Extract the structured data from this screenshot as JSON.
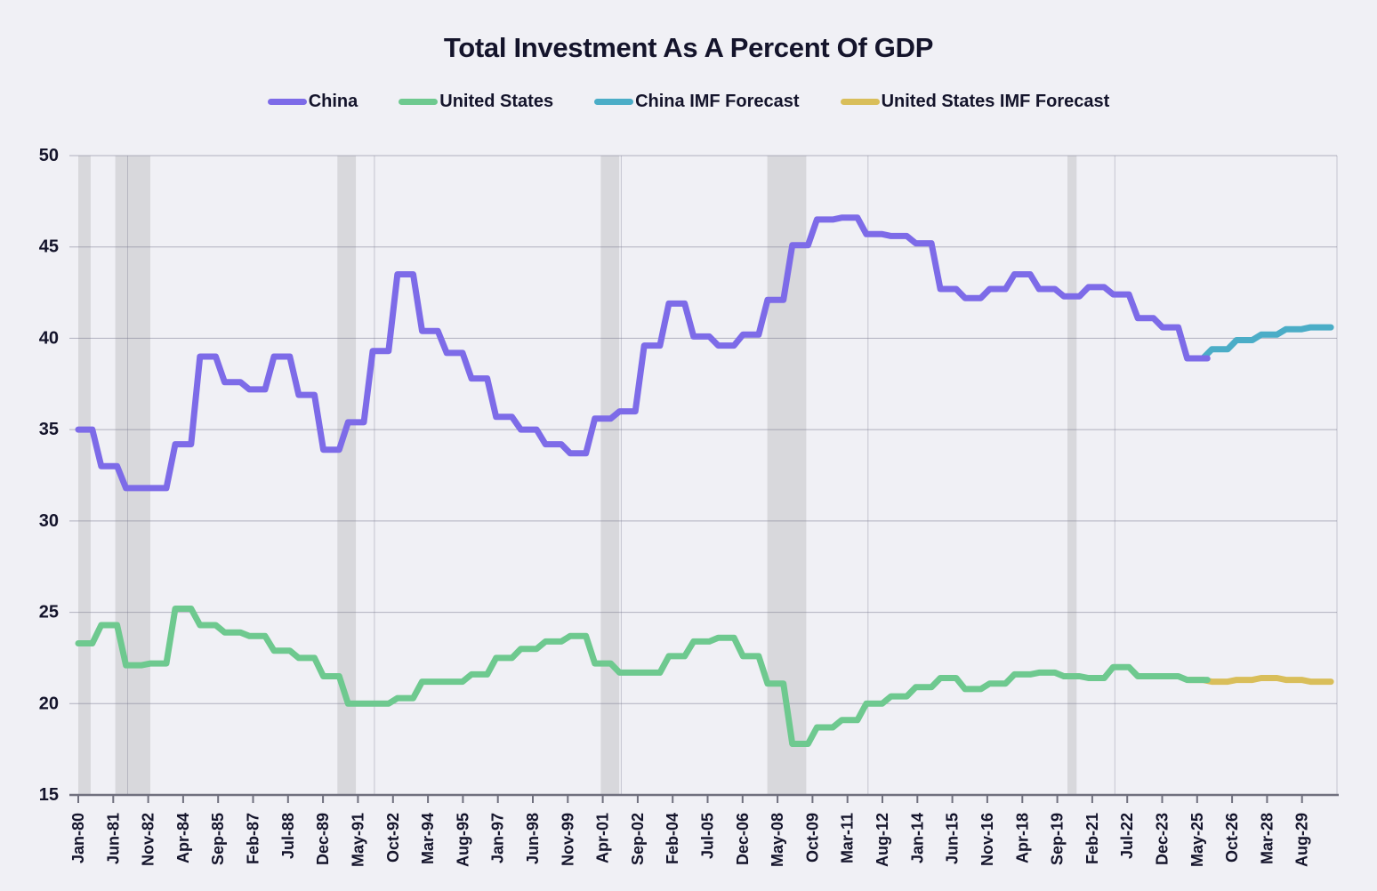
{
  "title": "Total Investment As A Percent Of GDP",
  "legend": {
    "items": [
      {
        "label": "China",
        "color": "#7D6BE8"
      },
      {
        "label": "United States",
        "color": "#6EC98F"
      },
      {
        "label": "China IMF Forecast",
        "color": "#4BADC7"
      },
      {
        "label": "United States IMF Forecast",
        "color": "#D9BE5A"
      }
    ]
  },
  "chart_data": {
    "type": "line",
    "step_interpolation": true,
    "title": "Total Investment As A Percent Of GDP",
    "xlabel": "",
    "ylabel": "",
    "ylim": [
      15,
      50
    ],
    "yticks": [
      15,
      20,
      25,
      30,
      35,
      40,
      45,
      50
    ],
    "x_range_years": [
      1980,
      2031
    ],
    "x_tick_spacing_months": 17,
    "x_tick_labels": [
      "Jan-80",
      "Jun-81",
      "Nov-82",
      "Apr-84",
      "Sep-85",
      "Feb-87",
      "Jul-88",
      "Dec-89",
      "May-91",
      "Oct-92",
      "Mar-94",
      "Aug-95",
      "Jan-97",
      "Jun-98",
      "Nov-99",
      "Apr-01",
      "Sep-02",
      "Feb-04",
      "Jul-05",
      "Dec-06",
      "May-08",
      "Oct-09",
      "Mar-11",
      "Aug-12",
      "Jan-14",
      "Jun-15",
      "Nov-16",
      "Apr-18",
      "Sep-19",
      "Feb-21",
      "Jul-22",
      "Dec-23",
      "May-25",
      "Oct-26",
      "Mar-28",
      "Aug-29"
    ],
    "grid": {
      "horizontal": true,
      "vertical_decades": [
        1982,
        1992,
        2002,
        2012,
        2022
      ],
      "right_border_year": 2031
    },
    "recession_bands": [
      [
        1980.0,
        1980.5
      ],
      [
        1981.5,
        1982.92
      ],
      [
        1990.5,
        1991.25
      ],
      [
        2001.17,
        2001.92
      ],
      [
        2007.92,
        2009.5
      ],
      [
        2020.08,
        2020.45
      ]
    ],
    "series": [
      {
        "name": "China",
        "color": "#7D6BE8",
        "forecast": false,
        "start_year": 1980,
        "values": [
          35.0,
          33.0,
          31.8,
          31.8,
          34.2,
          39.0,
          37.6,
          37.2,
          39.0,
          36.9,
          33.9,
          35.4,
          39.3,
          43.5,
          40.4,
          39.2,
          37.8,
          35.7,
          35.0,
          34.2,
          33.7,
          35.6,
          36.0,
          39.6,
          41.9,
          40.1,
          39.6,
          40.2,
          42.1,
          45.1,
          46.5,
          46.6,
          45.7,
          45.6,
          45.2,
          42.7,
          42.2,
          42.7,
          43.5,
          42.7,
          42.3,
          42.8,
          42.4,
          41.1,
          40.6,
          38.9
        ]
      },
      {
        "name": "United States",
        "color": "#6EC98F",
        "forecast": false,
        "start_year": 1980,
        "values": [
          23.3,
          24.3,
          22.1,
          22.2,
          25.2,
          24.3,
          23.9,
          23.7,
          22.9,
          22.5,
          21.5,
          20.0,
          20.0,
          20.3,
          21.2,
          21.2,
          21.6,
          22.5,
          23.0,
          23.4,
          23.7,
          22.2,
          21.7,
          21.7,
          22.6,
          23.4,
          23.6,
          22.6,
          21.1,
          17.8,
          18.7,
          19.1,
          20.0,
          20.4,
          20.9,
          21.4,
          20.8,
          21.1,
          21.6,
          21.7,
          21.5,
          21.4,
          22.0,
          21.5,
          21.5,
          21.3
        ]
      },
      {
        "name": "China IMF Forecast",
        "color": "#4BADC7",
        "forecast": true,
        "start_year": 2025,
        "values": [
          38.9,
          39.4,
          39.9,
          40.2,
          40.5,
          40.6
        ]
      },
      {
        "name": "United States IMF Forecast",
        "color": "#D9BE5A",
        "forecast": true,
        "start_year": 2025,
        "values": [
          21.3,
          21.2,
          21.3,
          21.4,
          21.3,
          21.2
        ]
      }
    ],
    "colors": {
      "background": "#F0F0F5",
      "grid": "#7E7E92",
      "axis": "#70707E",
      "band": "#D8D8DC",
      "text": "#14142B"
    }
  }
}
